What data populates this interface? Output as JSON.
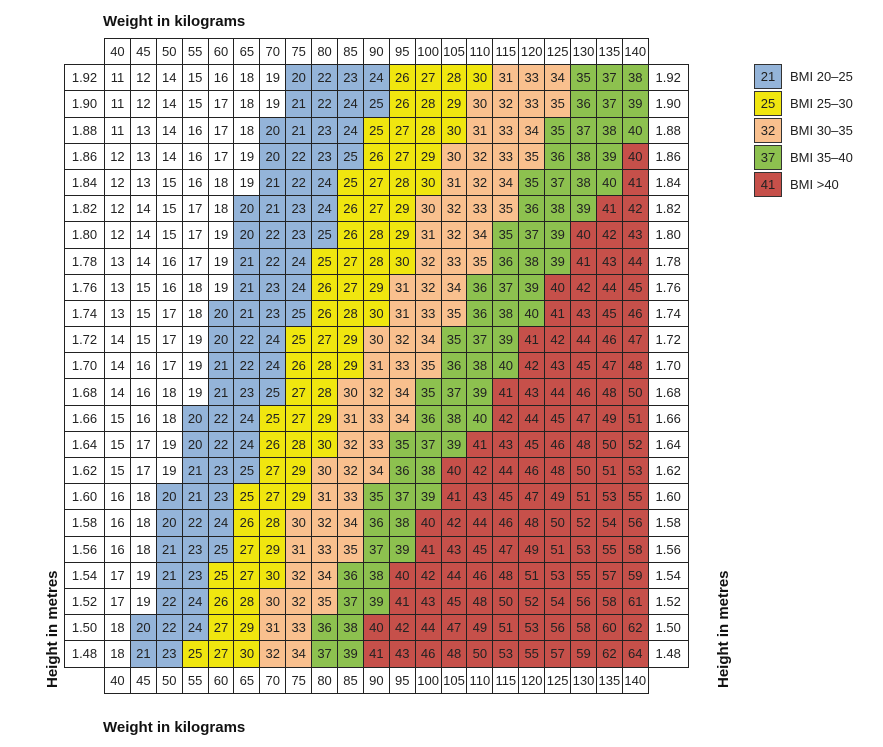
{
  "chart_data": {
    "type": "heatmap",
    "title": "",
    "xlabel": "Weight in kilograms",
    "ylabel": "Height in metres",
    "x": [
      40,
      45,
      50,
      55,
      60,
      65,
      70,
      75,
      80,
      85,
      90,
      95,
      100,
      105,
      110,
      115,
      120,
      125,
      130,
      135,
      140
    ],
    "y": [
      "1.92",
      "1.90",
      "1.88",
      "1.86",
      "1.84",
      "1.82",
      "1.80",
      "1.78",
      "1.76",
      "1.74",
      "1.72",
      "1.70",
      "1.68",
      "1.66",
      "1.64",
      "1.62",
      "1.60",
      "1.58",
      "1.56",
      "1.54",
      "1.52",
      "1.50",
      "1.48"
    ],
    "values": [
      [
        11,
        12,
        14,
        15,
        16,
        18,
        19,
        20,
        22,
        23,
        24,
        26,
        27,
        28,
        30,
        31,
        33,
        34,
        35,
        37,
        38
      ],
      [
        11,
        12,
        14,
        15,
        17,
        18,
        19,
        21,
        22,
        24,
        25,
        26,
        28,
        29,
        30,
        32,
        33,
        35,
        36,
        37,
        39
      ],
      [
        11,
        13,
        14,
        16,
        17,
        18,
        20,
        21,
        23,
        24,
        25,
        27,
        28,
        30,
        31,
        33,
        34,
        35,
        37,
        38,
        40
      ],
      [
        12,
        13,
        14,
        16,
        17,
        19,
        20,
        22,
        23,
        25,
        26,
        27,
        29,
        30,
        32,
        33,
        35,
        36,
        38,
        39,
        40
      ],
      [
        12,
        13,
        15,
        16,
        18,
        19,
        21,
        22,
        24,
        25,
        27,
        28,
        30,
        31,
        32,
        34,
        35,
        37,
        38,
        40,
        41
      ],
      [
        12,
        14,
        15,
        17,
        18,
        20,
        21,
        23,
        24,
        26,
        27,
        29,
        30,
        32,
        33,
        35,
        36,
        38,
        39,
        41,
        42
      ],
      [
        12,
        14,
        15,
        17,
        19,
        20,
        22,
        23,
        25,
        26,
        28,
        29,
        31,
        32,
        34,
        35,
        37,
        39,
        40,
        42,
        43
      ],
      [
        13,
        14,
        16,
        17,
        19,
        21,
        22,
        24,
        25,
        27,
        28,
        30,
        32,
        33,
        35,
        36,
        38,
        39,
        41,
        43,
        44
      ],
      [
        13,
        15,
        16,
        18,
        19,
        21,
        23,
        24,
        26,
        27,
        29,
        31,
        32,
        34,
        36,
        37,
        39,
        40,
        42,
        44,
        45
      ],
      [
        13,
        15,
        17,
        18,
        20,
        21,
        23,
        25,
        26,
        28,
        30,
        31,
        33,
        35,
        36,
        38,
        40,
        41,
        43,
        45,
        46
      ],
      [
        14,
        15,
        17,
        19,
        20,
        22,
        24,
        25,
        27,
        29,
        30,
        32,
        34,
        35,
        37,
        39,
        41,
        42,
        44,
        46,
        47
      ],
      [
        14,
        16,
        17,
        19,
        21,
        22,
        24,
        26,
        28,
        29,
        31,
        33,
        35,
        36,
        38,
        40,
        42,
        43,
        45,
        47,
        48
      ],
      [
        14,
        16,
        18,
        19,
        21,
        23,
        25,
        27,
        28,
        30,
        32,
        34,
        35,
        37,
        39,
        41,
        43,
        44,
        46,
        48,
        50
      ],
      [
        15,
        16,
        18,
        20,
        22,
        24,
        25,
        27,
        29,
        31,
        33,
        34,
        36,
        38,
        40,
        42,
        44,
        45,
        47,
        49,
        51
      ],
      [
        15,
        17,
        19,
        20,
        22,
        24,
        26,
        28,
        30,
        32,
        33,
        35,
        37,
        39,
        41,
        43,
        45,
        46,
        48,
        50,
        52
      ],
      [
        15,
        17,
        19,
        21,
        23,
        25,
        27,
        29,
        30,
        32,
        34,
        36,
        38,
        40,
        42,
        44,
        46,
        48,
        50,
        51,
        53
      ],
      [
        16,
        18,
        20,
        21,
        23,
        25,
        27,
        29,
        31,
        33,
        35,
        37,
        39,
        41,
        43,
        45,
        47,
        49,
        51,
        53,
        55
      ],
      [
        16,
        18,
        20,
        22,
        24,
        26,
        28,
        30,
        32,
        34,
        36,
        38,
        40,
        42,
        44,
        46,
        48,
        50,
        52,
        54,
        56
      ],
      [
        16,
        18,
        21,
        23,
        25,
        27,
        29,
        31,
        33,
        35,
        37,
        39,
        41,
        43,
        45,
        47,
        49,
        51,
        53,
        55,
        58
      ],
      [
        17,
        19,
        21,
        23,
        25,
        27,
        30,
        32,
        34,
        36,
        38,
        40,
        42,
        44,
        46,
        48,
        51,
        53,
        55,
        57,
        59
      ],
      [
        17,
        19,
        22,
        24,
        26,
        28,
        30,
        32,
        35,
        37,
        39,
        41,
        43,
        45,
        48,
        50,
        52,
        54,
        56,
        58,
        61
      ],
      [
        18,
        20,
        22,
        24,
        27,
        29,
        31,
        33,
        36,
        38,
        40,
        42,
        44,
        47,
        49,
        51,
        53,
        56,
        58,
        60,
        62
      ],
      [
        18,
        21,
        23,
        25,
        27,
        30,
        32,
        34,
        37,
        39,
        41,
        43,
        46,
        48,
        50,
        53,
        55,
        57,
        59,
        62,
        64
      ]
    ],
    "legend": [
      {
        "sample": "21",
        "label": "BMI 20–25",
        "color": "#94b4d9",
        "min": 19.5
      },
      {
        "sample": "25",
        "label": "BMI 25–30",
        "color": "#f0e60f",
        "min": 25
      },
      {
        "sample": "32",
        "label": "BMI 30–35",
        "color": "#f9c08e",
        "min": 30
      },
      {
        "sample": "37",
        "label": "BMI 35–40",
        "color": "#8dc14f",
        "min": 35
      },
      {
        "sample": "41",
        "label": "BMI >40",
        "color": "#c6504a",
        "min": 40
      }
    ],
    "legend_position": "right"
  }
}
